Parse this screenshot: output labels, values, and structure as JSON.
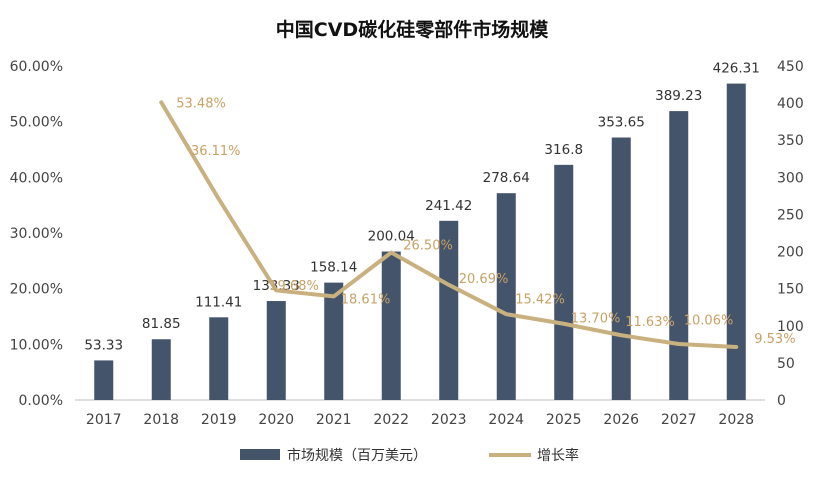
{
  "chart_data": {
    "type": "bar",
    "title": "中国CVD碳化硅零部件市场规模",
    "categories": [
      "2017",
      "2018",
      "2019",
      "2020",
      "2021",
      "2022",
      "2023",
      "2024",
      "2025",
      "2026",
      "2027",
      "2028"
    ],
    "series": [
      {
        "name": "市场规模（百万美元）",
        "type": "bar",
        "axis": "right",
        "color": "#44546a",
        "values": [
          53.33,
          81.85,
          111.41,
          133.33,
          158.14,
          200.04,
          241.42,
          278.64,
          316.8,
          353.65,
          389.23,
          426.31
        ],
        "labels": [
          "53.33",
          "81.85",
          "111.41",
          "133.33",
          "158.14",
          "200.04",
          "241.42",
          "278.64",
          "316.8",
          "353.65",
          "389.23",
          "426.31"
        ]
      },
      {
        "name": "增长率",
        "type": "line",
        "axis": "left",
        "color": "#c9b17f",
        "label_color": "#c8a165",
        "values": [
          null,
          53.48,
          36.11,
          19.68,
          18.61,
          26.5,
          20.69,
          15.42,
          13.7,
          11.63,
          10.06,
          9.53
        ],
        "labels": [
          "",
          "53.48%",
          "36.11%",
          "19.68%",
          "18.61%",
          "26.50%",
          "20.69%",
          "15.42%",
          "13.70%",
          "11.63%",
          "10.06%",
          "9.53%"
        ]
      }
    ],
    "y_left": {
      "min": 0,
      "max": 60,
      "ticks": [
        0,
        10,
        20,
        30,
        40,
        50,
        60
      ],
      "tick_labels": [
        "0.00%",
        "10.00%",
        "20.00%",
        "30.00%",
        "40.00%",
        "50.00%",
        "60.00%"
      ]
    },
    "y_right": {
      "min": 0,
      "max": 450,
      "ticks": [
        0,
        50,
        100,
        150,
        200,
        250,
        300,
        350,
        400,
        450
      ],
      "tick_labels": [
        "0",
        "50",
        "100",
        "150",
        "200",
        "250",
        "300",
        "350",
        "400",
        "450"
      ]
    },
    "grid": false,
    "legend_position": "bottom"
  }
}
